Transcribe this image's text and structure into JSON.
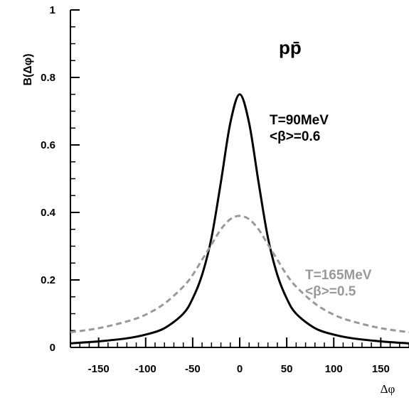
{
  "chart_data": {
    "type": "line",
    "title": "pp̄",
    "xlabel": "Δφ",
    "ylabel": "B(Δφ)",
    "xlim": [
      -180,
      180
    ],
    "ylim": [
      0,
      1
    ],
    "x_ticks": [
      -150,
      -100,
      -50,
      0,
      50,
      100,
      150
    ],
    "x_tick_labels": [
      "-150",
      "-100",
      "-50",
      "0",
      "50",
      "100",
      "150"
    ],
    "y_ticks": [
      0,
      0.2,
      0.4,
      0.6,
      0.8,
      1
    ],
    "y_tick_labels": [
      "0",
      "0.2",
      "0.4",
      "0.6",
      "0.8",
      "1"
    ],
    "grid": false,
    "series": [
      {
        "name": "T=90MeV <β>=0.6",
        "style": "solid",
        "color": "#000000",
        "x": [
          -180,
          -150,
          -120,
          -100,
          -80,
          -60,
          -50,
          -40,
          -30,
          -20,
          -10,
          0,
          10,
          20,
          30,
          40,
          50,
          60,
          80,
          100,
          120,
          150,
          180
        ],
        "y": [
          0.012,
          0.018,
          0.027,
          0.038,
          0.057,
          0.1,
          0.145,
          0.215,
          0.325,
          0.49,
          0.665,
          0.75,
          0.665,
          0.49,
          0.325,
          0.215,
          0.145,
          0.1,
          0.057,
          0.038,
          0.027,
          0.018,
          0.012
        ]
      },
      {
        "name": "T=165MeV <β>=0.5",
        "style": "dashed",
        "color": "#999999",
        "x": [
          -180,
          -150,
          -120,
          -100,
          -80,
          -60,
          -50,
          -40,
          -30,
          -20,
          -10,
          0,
          10,
          20,
          30,
          40,
          50,
          60,
          80,
          100,
          120,
          150,
          180
        ],
        "y": [
          0.045,
          0.057,
          0.077,
          0.097,
          0.13,
          0.18,
          0.215,
          0.26,
          0.305,
          0.35,
          0.38,
          0.39,
          0.38,
          0.35,
          0.305,
          0.26,
          0.215,
          0.18,
          0.13,
          0.097,
          0.077,
          0.057,
          0.045
        ]
      }
    ],
    "annotations": [
      {
        "lines": [
          "T=90MeV",
          "<β>=0.6"
        ],
        "color": "#000000"
      },
      {
        "lines": [
          "T=165MeV",
          "<β>=0.5"
        ],
        "color": "#999999"
      }
    ]
  }
}
